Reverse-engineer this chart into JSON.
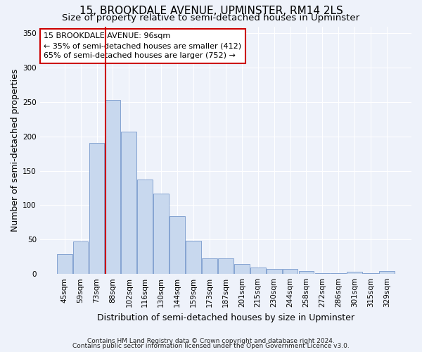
{
  "title": "15, BROOKDALE AVENUE, UPMINSTER, RM14 2LS",
  "subtitle": "Size of property relative to semi-detached houses in Upminster",
  "xlabel": "Distribution of semi-detached houses by size in Upminster",
  "ylabel": "Number of semi-detached properties",
  "categories": [
    "45sqm",
    "59sqm",
    "73sqm",
    "88sqm",
    "102sqm",
    "116sqm",
    "130sqm",
    "144sqm",
    "159sqm",
    "173sqm",
    "187sqm",
    "201sqm",
    "215sqm",
    "230sqm",
    "244sqm",
    "258sqm",
    "272sqm",
    "286sqm",
    "301sqm",
    "315sqm",
    "329sqm"
  ],
  "values": [
    29,
    47,
    191,
    253,
    207,
    137,
    117,
    84,
    48,
    23,
    23,
    15,
    9,
    7,
    7,
    4,
    1,
    1,
    3,
    1,
    4
  ],
  "bar_color": "#c8d8ee",
  "bar_edge_color": "#7799cc",
  "vline_index": 3,
  "annotation_line1": "15 BROOKDALE AVENUE: 96sqm",
  "annotation_line2": "← 35% of semi-detached houses are smaller (412)",
  "annotation_line3": "65% of semi-detached houses are larger (752) →",
  "annotation_box_color": "#ffffff",
  "annotation_box_edge": "#cc0000",
  "vline_color": "#cc0000",
  "ylim": [
    0,
    360
  ],
  "yticks": [
    0,
    50,
    100,
    150,
    200,
    250,
    300,
    350
  ],
  "footer1": "Contains HM Land Registry data © Crown copyright and database right 2024.",
  "footer2": "Contains public sector information licensed under the Open Government Licence v3.0.",
  "bg_color": "#eef2fa",
  "grid_color": "#ffffff",
  "title_fontsize": 11,
  "subtitle_fontsize": 9.5,
  "axis_label_fontsize": 9,
  "tick_fontsize": 7.5,
  "annotation_fontsize": 8,
  "footer_fontsize": 6.5
}
